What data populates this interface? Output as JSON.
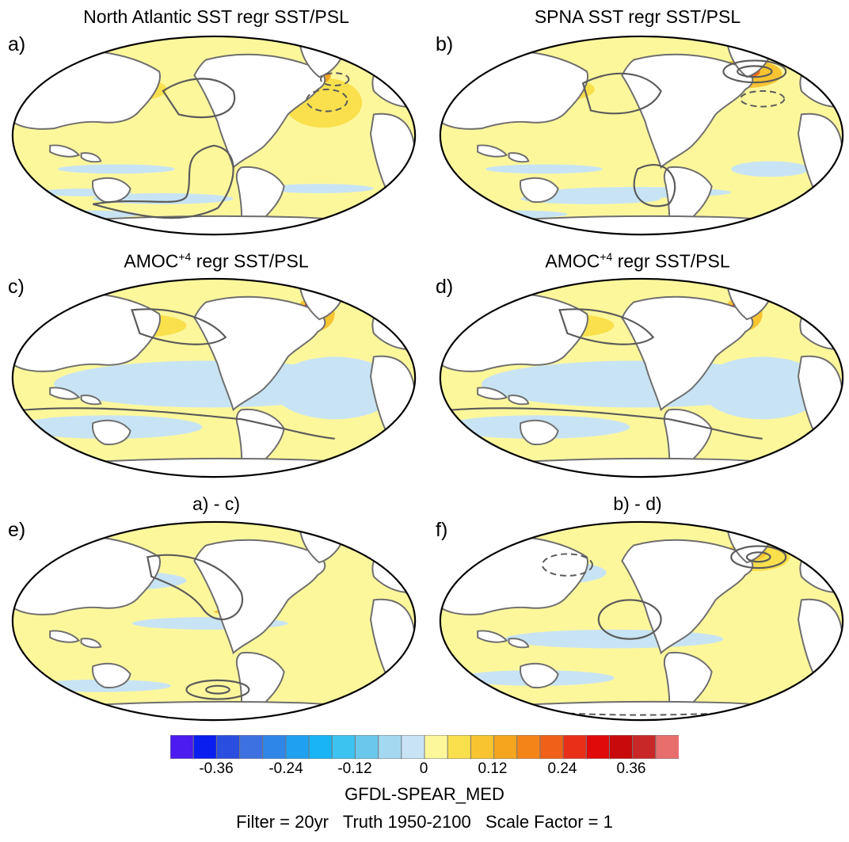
{
  "chart_data": {
    "type": "heatmap",
    "description_kind": "six global SST regression maps with PSL contours",
    "panels": [
      {
        "letter": "a)",
        "title": "North Atlantic SST regr SST/PSL"
      },
      {
        "letter": "b)",
        "title": "SPNA SST regr SST/PSL"
      },
      {
        "letter": "c)",
        "title_main": "AMOC",
        "title_sup": "+4",
        "title_rest": " regr SST/PSL"
      },
      {
        "letter": "d)",
        "title_main": "AMOC",
        "title_sup": "+4",
        "title_rest": " regr SST/PSL"
      },
      {
        "letter": "e)",
        "title": "a) - c)"
      },
      {
        "letter": "f)",
        "title": "b) - d)"
      }
    ],
    "colorbar": {
      "colors": [
        "#4b1bf0",
        "#0a1ef0",
        "#2a4ee0",
        "#3d70e0",
        "#2e86e8",
        "#1fa0f0",
        "#18b4f4",
        "#3cc3f0",
        "#6ac8ec",
        "#a3d8f0",
        "#c8e4f4",
        "#fdf79c",
        "#f9e04c",
        "#f8c430",
        "#f6a51e",
        "#f58418",
        "#f06018",
        "#e83018",
        "#e00a0a",
        "#c80a0a",
        "#c82828",
        "#e86e6e"
      ],
      "tick_values": [
        -0.36,
        -0.24,
        -0.12,
        0,
        0.12,
        0.24,
        0.36
      ],
      "tick_labels": [
        "-0.36",
        "-0.24",
        "-0.12",
        "0",
        "0.12",
        "0.24",
        "0.36"
      ]
    }
  },
  "footer": {
    "model": "GFDL-SPEAR_MED",
    "info": "Filter = 20yr   Truth 1950-2100   Scale Factor = 1"
  },
  "colors": {
    "ocean_base": "#fdf79c",
    "land": "#ffffff",
    "coast": "#6e6e6e",
    "contour": "#5a5a5a"
  }
}
